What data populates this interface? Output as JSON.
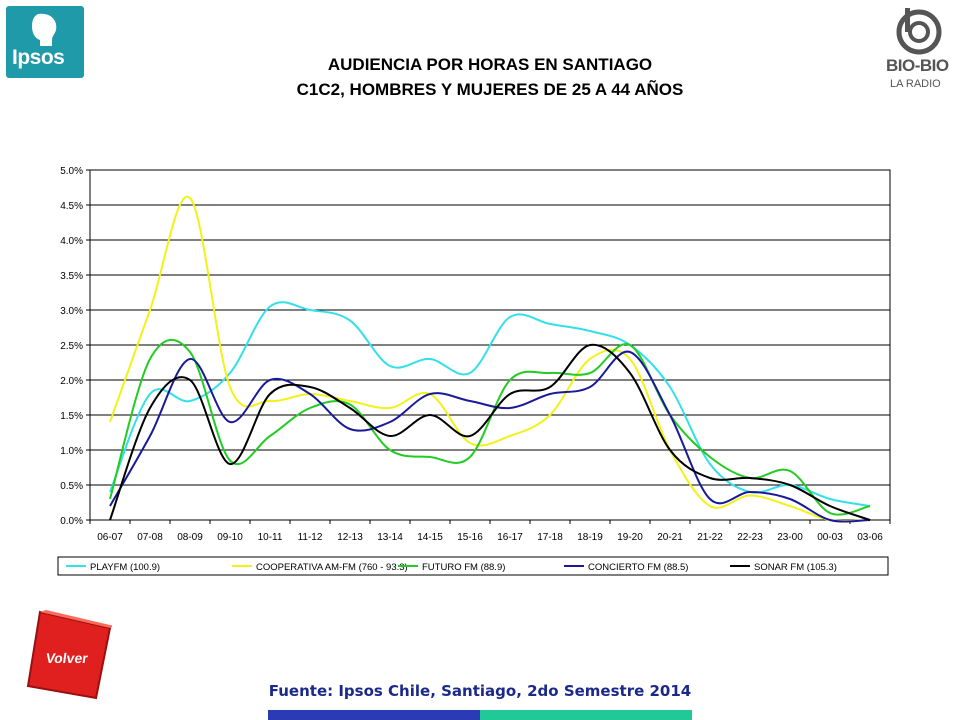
{
  "header": {
    "title_line1": "AUDIENCIA POR HORAS EN SANTIAGO",
    "title_line2": "C1C2, HOMBRES Y MUJERES DE 25 A 44 AÑOS"
  },
  "logos": {
    "left": {
      "text": "Ipsos",
      "color": "#1f9aa8"
    },
    "right": {
      "text": "BIO-BIO",
      "subtext": "LA RADIO",
      "color": "#555555"
    }
  },
  "back_button": {
    "label": "Volver",
    "color": "#e0201e"
  },
  "footer": {
    "source": "Fuente: Ipsos Chile, Santiago, 2do Semestre 2014",
    "bar_colors": [
      "#2b3ab5",
      "#20c997"
    ]
  },
  "chart_data": {
    "type": "line",
    "title": "",
    "xlabel": "",
    "ylabel": "",
    "ylim": [
      0,
      5
    ],
    "y_ticks": [
      "0.0%",
      "0.5%",
      "1.0%",
      "1.5%",
      "2.0%",
      "2.5%",
      "3.0%",
      "3.5%",
      "4.0%",
      "4.5%",
      "5.0%"
    ],
    "grid": true,
    "legend_position": "bottom",
    "categories": [
      "06-07",
      "07-08",
      "08-09",
      "09-10",
      "10-11",
      "11-12",
      "12-13",
      "13-14",
      "14-15",
      "15-16",
      "16-17",
      "17-18",
      "18-19",
      "19-20",
      "20-21",
      "21-22",
      "22-23",
      "23-00",
      "00-03",
      "03-06"
    ],
    "series": [
      {
        "name": "PLAYFM (100.9)",
        "color": "#33e0e8",
        "values": [
          0.4,
          1.8,
          1.7,
          2.1,
          3.05,
          3.0,
          2.85,
          2.2,
          2.3,
          2.1,
          2.9,
          2.8,
          2.7,
          2.5,
          1.9,
          0.8,
          0.4,
          0.5,
          0.3,
          0.2
        ]
      },
      {
        "name": "COOPERATIVA AM-FM (760 - 93.3)",
        "color": "#f2f21a",
        "values": [
          1.4,
          3.0,
          4.6,
          1.9,
          1.7,
          1.8,
          1.7,
          1.6,
          1.8,
          1.1,
          1.2,
          1.5,
          2.3,
          2.3,
          1.0,
          0.2,
          0.35,
          0.2,
          0.0,
          0.0
        ]
      },
      {
        "name": "FUTURO FM (88.9)",
        "color": "#22cc22",
        "values": [
          0.3,
          2.3,
          2.4,
          0.85,
          1.2,
          1.6,
          1.65,
          1.0,
          0.9,
          0.9,
          2.0,
          2.1,
          2.1,
          2.5,
          1.5,
          0.9,
          0.6,
          0.7,
          0.1,
          0.2
        ]
      },
      {
        "name": "CONCIERTO FM (88.5)",
        "color": "#1a1a99",
        "values": [
          0.2,
          1.2,
          2.3,
          1.4,
          2.0,
          1.8,
          1.3,
          1.4,
          1.8,
          1.7,
          1.6,
          1.8,
          1.9,
          2.4,
          1.5,
          0.3,
          0.4,
          0.3,
          0.0,
          0.0
        ]
      },
      {
        "name": "SONAR FM (105.3)",
        "color": "#000000",
        "values": [
          0.0,
          1.6,
          2.0,
          0.8,
          1.8,
          1.9,
          1.6,
          1.2,
          1.5,
          1.2,
          1.8,
          1.9,
          2.5,
          2.1,
          1.0,
          0.6,
          0.6,
          0.5,
          0.2,
          0.0
        ]
      }
    ]
  }
}
